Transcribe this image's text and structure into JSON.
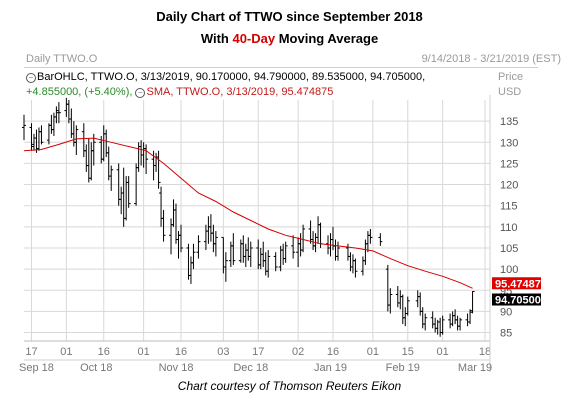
{
  "title": "Daily Chart of TTWO since September 2018",
  "subtitle": {
    "prefix": "With ",
    "highlight": "40-Day",
    "suffix": " Moving Average"
  },
  "header": {
    "chart_name": "Daily TTWO.O",
    "date_range": "9/14/2018 - 3/21/2019 (EST)"
  },
  "price_header": {
    "line1": "Price",
    "line2": "USD"
  },
  "info": {
    "line1": "BarOHLC, TTWO.O, 3/13/2019, 90.170000, 94.790000, 89.535000, 94.705000,",
    "line2_change": "+4.855000, (+5.40%),",
    "line2_sma": "SMA, TTWO.O, 3/13/2019, 95.474875"
  },
  "caption": "Chart courtesy of Thomson Reuters Eikon",
  "colors": {
    "bars": "#000000",
    "sma": "#d40000",
    "grid": "#d8d8d8",
    "sma_tag": "#e00000",
    "price_tag": "#000000"
  },
  "chart_data": {
    "type": "line",
    "ylim": [
      83,
      140
    ],
    "ylabel": "Price USD",
    "yticks": [
      85,
      90,
      95,
      100,
      105,
      110,
      115,
      120,
      125,
      130,
      135
    ],
    "grid": true,
    "xticks": [
      {
        "label": "17",
        "date": "2018-09-17"
      },
      {
        "label": "01",
        "date": "2018-10-01"
      },
      {
        "label": "16",
        "date": "2018-10-16"
      },
      {
        "label": "01",
        "date": "2018-11-01"
      },
      {
        "label": "16",
        "date": "2018-11-16"
      },
      {
        "label": "03",
        "date": "2018-12-03"
      },
      {
        "label": "17",
        "date": "2018-12-17"
      },
      {
        "label": "02",
        "date": "2019-01-02"
      },
      {
        "label": "16",
        "date": "2019-01-16"
      },
      {
        "label": "01",
        "date": "2019-02-01"
      },
      {
        "label": "15",
        "date": "2019-02-15"
      },
      {
        "label": "01",
        "date": "2019-03-01"
      },
      {
        "label": "18",
        "date": "2019-03-18"
      }
    ],
    "months": [
      {
        "label": "Sep 18",
        "date": "2018-09-19"
      },
      {
        "label": "Oct 18",
        "date": "2018-10-13"
      },
      {
        "label": "Nov 18",
        "date": "2018-11-14"
      },
      {
        "label": "Dec 18",
        "date": "2018-12-14"
      },
      {
        "label": "Jan 19",
        "date": "2019-01-15"
      },
      {
        "label": "Feb 19",
        "date": "2019-02-13"
      },
      {
        "label": "Mar 19",
        "date": "2019-03-14"
      }
    ],
    "ohlc": {
      "columns": [
        "date",
        "open",
        "high",
        "low",
        "close"
      ],
      "values": [
        [
          "2018-09-14",
          133.5,
          136.5,
          130.5,
          134.0
        ],
        [
          "2018-09-17",
          133.5,
          134.5,
          128.0,
          129.0
        ],
        [
          "2018-09-18",
          129.5,
          132.0,
          128.0,
          131.0
        ],
        [
          "2018-09-19",
          131.0,
          133.0,
          127.5,
          128.5
        ],
        [
          "2018-09-20",
          128.5,
          133.5,
          128.0,
          132.5
        ],
        [
          "2018-09-21",
          132.5,
          134.0,
          129.5,
          130.0
        ],
        [
          "2018-09-24",
          130.5,
          134.5,
          129.5,
          134.0
        ],
        [
          "2018-09-25",
          134.0,
          136.5,
          132.0,
          133.0
        ],
        [
          "2018-09-26",
          133.0,
          137.0,
          131.5,
          136.0
        ],
        [
          "2018-09-27",
          136.0,
          138.5,
          134.5,
          137.5
        ],
        [
          "2018-09-28",
          137.0,
          139.5,
          134.5,
          137.0
        ],
        [
          "2018-10-01",
          137.5,
          140.5,
          136.0,
          139.0
        ],
        [
          "2018-10-02",
          139.0,
          140.0,
          134.5,
          135.5
        ],
        [
          "2018-10-03",
          135.5,
          138.0,
          131.0,
          132.0
        ],
        [
          "2018-10-04",
          132.0,
          135.0,
          129.0,
          130.0
        ],
        [
          "2018-10-05",
          130.0,
          134.0,
          127.0,
          133.0
        ],
        [
          "2018-10-08",
          132.5,
          134.5,
          126.5,
          128.0
        ],
        [
          "2018-10-09",
          128.0,
          129.5,
          123.0,
          124.5
        ],
        [
          "2018-10-10",
          124.5,
          131.0,
          120.5,
          121.5
        ],
        [
          "2018-10-11",
          121.5,
          130.0,
          121.0,
          128.0
        ],
        [
          "2018-10-12",
          128.0,
          132.0,
          124.5,
          130.0
        ],
        [
          "2018-10-15",
          130.0,
          131.5,
          125.0,
          126.0
        ],
        [
          "2018-10-16",
          126.0,
          134.0,
          125.5,
          132.0
        ],
        [
          "2018-10-17",
          132.0,
          133.0,
          126.5,
          127.5
        ],
        [
          "2018-10-18",
          127.5,
          129.0,
          121.0,
          122.0
        ],
        [
          "2018-10-19",
          122.0,
          124.5,
          118.5,
          123.5
        ],
        [
          "2018-10-22",
          123.5,
          125.0,
          115.0,
          116.5
        ],
        [
          "2018-10-23",
          116.5,
          119.5,
          113.0,
          118.0
        ],
        [
          "2018-10-24",
          118.0,
          124.0,
          110.0,
          112.0
        ],
        [
          "2018-10-25",
          112.0,
          122.0,
          111.5,
          120.5
        ],
        [
          "2018-10-26",
          120.5,
          122.0,
          114.5,
          115.5
        ],
        [
          "2018-10-29",
          115.5,
          125.0,
          115.0,
          124.0
        ],
        [
          "2018-10-30",
          124.0,
          130.0,
          123.0,
          129.0
        ],
        [
          "2018-10-31",
          129.0,
          130.5,
          124.5,
          127.0
        ],
        [
          "2018-11-01",
          127.0,
          130.0,
          124.0,
          128.5
        ],
        [
          "2018-11-02",
          128.5,
          129.5,
          122.5,
          126.0
        ],
        [
          "2018-11-05",
          126.0,
          128.0,
          121.0,
          124.5
        ],
        [
          "2018-11-06",
          124.5,
          127.5,
          123.0,
          126.5
        ],
        [
          "2018-11-07",
          126.5,
          128.0,
          119.0,
          120.5
        ],
        [
          "2018-11-08",
          118.0,
          119.5,
          110.0,
          112.0
        ],
        [
          "2018-11-09",
          112.0,
          114.0,
          106.5,
          108.0
        ],
        [
          "2018-11-12",
          108.0,
          112.0,
          103.5,
          110.5
        ],
        [
          "2018-11-13",
          110.5,
          116.5,
          110.0,
          114.0
        ],
        [
          "2018-11-14",
          114.0,
          115.5,
          106.0,
          107.0
        ],
        [
          "2018-11-15",
          107.0,
          109.0,
          102.5,
          108.0
        ],
        [
          "2018-11-16",
          108.0,
          110.5,
          104.0,
          105.0
        ],
        [
          "2018-11-19",
          105.0,
          106.0,
          97.5,
          98.5
        ],
        [
          "2018-11-20",
          98.5,
          103.0,
          96.5,
          101.5
        ],
        [
          "2018-11-21",
          101.5,
          106.0,
          100.0,
          104.0
        ],
        [
          "2018-11-23",
          104.0,
          108.0,
          102.5,
          106.5
        ],
        [
          "2018-11-26",
          106.5,
          110.5,
          104.5,
          109.0
        ],
        [
          "2018-11-27",
          109.0,
          112.5,
          106.0,
          110.0
        ],
        [
          "2018-11-28",
          110.0,
          113.0,
          106.5,
          108.5
        ],
        [
          "2018-11-29",
          108.5,
          110.5,
          104.0,
          106.0
        ],
        [
          "2018-11-30",
          106.0,
          109.0,
          103.0,
          107.5
        ],
        [
          "2018-12-03",
          107.5,
          107.5,
          99.0,
          100.5
        ],
        [
          "2018-12-04",
          100.5,
          104.0,
          97.0,
          102.0
        ],
        [
          "2018-12-06",
          102.0,
          106.5,
          100.5,
          105.5
        ],
        [
          "2018-12-07",
          105.5,
          108.5,
          101.0,
          102.0
        ],
        [
          "2018-12-10",
          102.0,
          107.0,
          101.5,
          106.0
        ],
        [
          "2018-12-11",
          106.0,
          108.0,
          101.5,
          103.0
        ],
        [
          "2018-12-12",
          103.0,
          106.0,
          100.5,
          104.5
        ],
        [
          "2018-12-13",
          104.5,
          107.5,
          102.0,
          103.0
        ],
        [
          "2018-12-14",
          103.0,
          106.5,
          100.5,
          105.0
        ],
        [
          "2018-12-17",
          105.0,
          107.0,
          100.0,
          101.0
        ],
        [
          "2018-12-18",
          101.0,
          105.0,
          100.0,
          103.5
        ],
        [
          "2018-12-19",
          103.5,
          106.5,
          100.5,
          102.0
        ],
        [
          "2018-12-20",
          102.0,
          104.0,
          98.5,
          99.5
        ],
        [
          "2018-12-21",
          99.5,
          104.5,
          98.0,
          103.0
        ],
        [
          "2018-12-24",
          103.0,
          104.0,
          99.5,
          100.5
        ],
        [
          "2018-12-26",
          100.5,
          105.5,
          99.5,
          104.5
        ],
        [
          "2018-12-27",
          104.5,
          106.0,
          101.0,
          102.5
        ],
        [
          "2018-12-28",
          102.5,
          106.5,
          101.5,
          105.5
        ],
        [
          "2018-12-31",
          105.5,
          108.0,
          102.5,
          104.0
        ],
        [
          "2019-01-02",
          104.0,
          107.5,
          100.5,
          106.0
        ],
        [
          "2019-01-03",
          106.0,
          108.5,
          103.0,
          104.5
        ],
        [
          "2019-01-04",
          104.5,
          110.5,
          104.0,
          109.5
        ],
        [
          "2019-01-07",
          109.5,
          111.5,
          106.0,
          107.0
        ],
        [
          "2019-01-08",
          107.0,
          109.0,
          104.5,
          105.5
        ],
        [
          "2019-01-09",
          105.5,
          108.5,
          104.0,
          107.5
        ],
        [
          "2019-01-10",
          107.5,
          112.5,
          106.0,
          110.5
        ],
        [
          "2019-01-11",
          110.5,
          111.0,
          105.0,
          106.0
        ],
        [
          "2019-01-14",
          106.0,
          108.0,
          103.5,
          105.0
        ],
        [
          "2019-01-15",
          105.0,
          108.5,
          103.0,
          107.0
        ],
        [
          "2019-01-16",
          107.0,
          110.0,
          104.5,
          105.5
        ],
        [
          "2019-01-17",
          105.5,
          107.0,
          102.0,
          103.0
        ],
        [
          "2019-01-18",
          103.0,
          106.5,
          102.0,
          105.0
        ],
        [
          "2019-01-22",
          105.0,
          106.0,
          102.0,
          103.0
        ],
        [
          "2019-01-23",
          103.0,
          104.0,
          99.5,
          100.5
        ],
        [
          "2019-01-24",
          100.5,
          103.5,
          99.0,
          102.0
        ],
        [
          "2019-01-25",
          102.0,
          102.5,
          98.0,
          99.5
        ],
        [
          "2019-01-28",
          99.5,
          103.0,
          98.5,
          102.0
        ],
        [
          "2019-01-29",
          102.0,
          107.0,
          101.0,
          106.0
        ],
        [
          "2019-01-30",
          106.0,
          109.0,
          104.0,
          108.0
        ],
        [
          "2019-01-31",
          108.0,
          109.5,
          106.0,
          107.5
        ],
        [
          "2019-02-04",
          107.5,
          108.5,
          105.5,
          106.5
        ],
        [
          "2019-02-07",
          100.0,
          101.0,
          90.0,
          91.5
        ],
        [
          "2019-02-08",
          91.5,
          95.5,
          89.5,
          94.0
        ],
        [
          "2019-02-11",
          94.0,
          96.0,
          91.0,
          92.0
        ],
        [
          "2019-02-12",
          92.0,
          95.0,
          90.5,
          93.5
        ],
        [
          "2019-02-13",
          93.5,
          94.0,
          87.0,
          88.5
        ],
        [
          "2019-02-14",
          88.5,
          91.0,
          86.5,
          89.5
        ],
        [
          "2019-02-15",
          89.5,
          93.5,
          89.0,
          92.5
        ],
        [
          "2019-02-19",
          92.5,
          95.0,
          91.0,
          93.5
        ],
        [
          "2019-02-20",
          93.5,
          94.5,
          89.0,
          90.0
        ],
        [
          "2019-02-21",
          90.0,
          91.0,
          86.0,
          87.0
        ],
        [
          "2019-02-22",
          87.0,
          89.5,
          85.5,
          88.5
        ],
        [
          "2019-02-25",
          88.5,
          90.0,
          86.0,
          87.0
        ],
        [
          "2019-02-26",
          87.0,
          88.5,
          85.0,
          86.0
        ],
        [
          "2019-02-27",
          86.0,
          88.0,
          84.5,
          87.5
        ],
        [
          "2019-02-28",
          87.5,
          88.5,
          84.0,
          85.0
        ],
        [
          "2019-03-01",
          85.0,
          89.0,
          84.5,
          88.0
        ],
        [
          "2019-03-04",
          88.0,
          89.5,
          86.0,
          87.0
        ],
        [
          "2019-03-05",
          87.0,
          90.0,
          86.5,
          89.0
        ],
        [
          "2019-03-06",
          89.0,
          90.5,
          87.0,
          88.0
        ],
        [
          "2019-03-07",
          88.0,
          89.0,
          85.5,
          86.5
        ],
        [
          "2019-03-08",
          86.5,
          88.5,
          85.5,
          88.0
        ],
        [
          "2019-03-11",
          88.0,
          89.5,
          86.5,
          87.5
        ],
        [
          "2019-03-12",
          87.5,
          90.5,
          87.0,
          89.8
        ],
        [
          "2019-03-13",
          90.17,
          94.79,
          89.535,
          94.705
        ]
      ]
    },
    "sma40": {
      "name": "SMA",
      "points": [
        [
          "2018-09-14",
          128.0
        ],
        [
          "2018-09-21",
          128.3
        ],
        [
          "2018-09-28",
          129.5
        ],
        [
          "2018-10-05",
          130.8
        ],
        [
          "2018-10-12",
          131.0
        ],
        [
          "2018-10-19",
          130.0
        ],
        [
          "2018-10-26",
          129.0
        ],
        [
          "2018-11-02",
          128.0
        ],
        [
          "2018-11-09",
          125.0
        ],
        [
          "2018-11-16",
          121.5
        ],
        [
          "2018-11-23",
          118.0
        ],
        [
          "2018-11-30",
          116.0
        ],
        [
          "2018-12-07",
          113.5
        ],
        [
          "2018-12-14",
          111.5
        ],
        [
          "2018-12-21",
          109.5
        ],
        [
          "2018-12-28",
          108.0
        ],
        [
          "2019-01-04",
          107.0
        ],
        [
          "2019-01-11",
          106.0
        ],
        [
          "2019-01-18",
          105.5
        ],
        [
          "2019-01-25",
          105.0
        ],
        [
          "2019-02-01",
          104.3
        ],
        [
          "2019-02-08",
          102.5
        ],
        [
          "2019-02-15",
          100.8
        ],
        [
          "2019-02-22",
          99.5
        ],
        [
          "2019-03-01",
          98.3
        ],
        [
          "2019-03-08",
          96.8
        ],
        [
          "2019-03-13",
          95.47
        ]
      ]
    },
    "last_sma": "95.474875",
    "last_close": "94.705000"
  }
}
